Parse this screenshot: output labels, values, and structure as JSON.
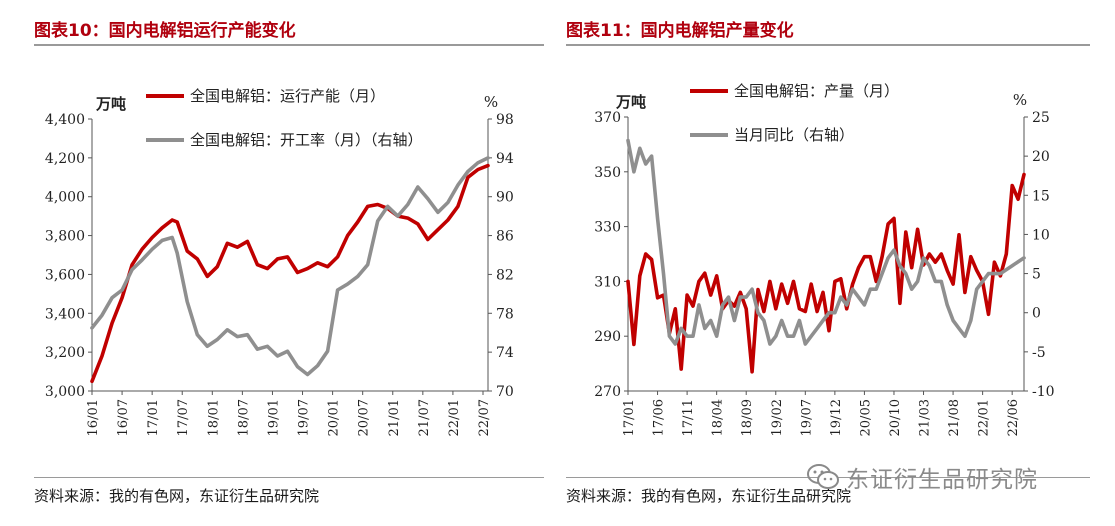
{
  "left": {
    "title": "图表10：国内电解铝运行产能变化",
    "source": "资料来源：我的有色网，东证衍生品研究院"
  },
  "right": {
    "title": "图表11：国内电解铝产量变化",
    "source": "资料来源：我的有色网，东证衍生品研究院"
  },
  "watermark": {
    "text": "东证衍生品研究院",
    "icon": "wechat-icon"
  },
  "colors": {
    "title": "#b0000e",
    "red_series": "#c00000",
    "gray_series": "#8f8f8f"
  },
  "chart_data": [
    {
      "type": "line",
      "ylabel_left": "万吨",
      "ylabel_right": "%",
      "ylim_left": [
        3000,
        4400
      ],
      "ylim_right": [
        70,
        98
      ],
      "yticks_left": [
        "3,000",
        "3,200",
        "3,400",
        "3,600",
        "3,800",
        "4,000",
        "4,200",
        "4,400"
      ],
      "yticks_right": [
        "70",
        "74",
        "78",
        "82",
        "86",
        "90",
        "94",
        "98"
      ],
      "x_ticks": [
        "16/01",
        "16/07",
        "17/01",
        "17/07",
        "18/01",
        "18/07",
        "19/01",
        "19/07",
        "20/01",
        "20/07",
        "21/01",
        "21/07",
        "22/01",
        "22/07"
      ],
      "x_range": [
        "2016-01",
        "2022-08"
      ],
      "grid": false,
      "legend_position": "top-left",
      "series": [
        {
          "name": "全国电解铝：运行产能（月）",
          "axis": "left",
          "color": "#c00000",
          "x": [
            "2016-01",
            "2016-03",
            "2016-05",
            "2016-07",
            "2016-09",
            "2016-11",
            "2017-01",
            "2017-03",
            "2017-05",
            "2017-06",
            "2017-08",
            "2017-10",
            "2017-12",
            "2018-02",
            "2018-04",
            "2018-06",
            "2018-08",
            "2018-10",
            "2018-12",
            "2019-02",
            "2019-04",
            "2019-06",
            "2019-08",
            "2019-10",
            "2019-12",
            "2020-02",
            "2020-04",
            "2020-06",
            "2020-08",
            "2020-10",
            "2020-12",
            "2021-02",
            "2021-04",
            "2021-06",
            "2021-08",
            "2021-10",
            "2021-12",
            "2022-02",
            "2022-04",
            "2022-06",
            "2022-08"
          ],
          "values": [
            3050,
            3180,
            3350,
            3480,
            3650,
            3730,
            3790,
            3840,
            3880,
            3870,
            3720,
            3680,
            3590,
            3640,
            3760,
            3740,
            3770,
            3650,
            3630,
            3680,
            3690,
            3610,
            3630,
            3660,
            3640,
            3690,
            3800,
            3870,
            3950,
            3960,
            3940,
            3900,
            3890,
            3860,
            3780,
            3830,
            3880,
            3950,
            4100,
            4140,
            4160
          ]
        },
        {
          "name": "全国电解铝：开工率（月）（右轴）",
          "axis": "right",
          "color": "#8f8f8f",
          "x": [
            "2016-01",
            "2016-03",
            "2016-05",
            "2016-07",
            "2016-09",
            "2016-11",
            "2017-01",
            "2017-03",
            "2017-05",
            "2017-06",
            "2017-08",
            "2017-10",
            "2017-12",
            "2018-02",
            "2018-04",
            "2018-06",
            "2018-08",
            "2018-10",
            "2018-12",
            "2019-02",
            "2019-04",
            "2019-06",
            "2019-08",
            "2019-10",
            "2019-12",
            "2020-02",
            "2020-04",
            "2020-06",
            "2020-08",
            "2020-10",
            "2020-12",
            "2021-02",
            "2021-04",
            "2021-06",
            "2021-08",
            "2021-10",
            "2021-12",
            "2022-02",
            "2022-04",
            "2022-06",
            "2022-08"
          ],
          "values": [
            76.5,
            77.8,
            79.6,
            80.4,
            82.5,
            83.5,
            84.6,
            85.5,
            85.8,
            84.2,
            79.2,
            75.8,
            74.6,
            75.3,
            76.3,
            75.6,
            75.8,
            74.3,
            74.6,
            73.6,
            74.1,
            72.5,
            71.7,
            72.6,
            74.1,
            80.4,
            81.0,
            81.8,
            83.0,
            87.5,
            89.0,
            88.0,
            89.2,
            91.0,
            89.8,
            88.4,
            89.4,
            91.2,
            92.6,
            93.5,
            94.0
          ]
        }
      ]
    },
    {
      "type": "line",
      "ylabel_left": "万吨",
      "ylabel_right": "%",
      "ylim_left": [
        270,
        370
      ],
      "ylim_right": [
        -10,
        25
      ],
      "yticks_left": [
        "270",
        "290",
        "310",
        "330",
        "350",
        "370"
      ],
      "yticks_right": [
        "-10",
        "-5",
        "0",
        "5",
        "10",
        "15",
        "20",
        "25"
      ],
      "x_ticks": [
        "17/01",
        "17/06",
        "17/11",
        "18/04",
        "18/09",
        "19/02",
        "19/07",
        "19/12",
        "20/05",
        "20/10",
        "21/03",
        "21/08",
        "22/01",
        "22/06"
      ],
      "x_range": [
        "2017-01",
        "2022-08"
      ],
      "grid": false,
      "legend_position": "top-left",
      "series": [
        {
          "name": "全国电解铝：产量（月）",
          "axis": "left",
          "color": "#c00000",
          "x": [
            "2017-01",
            "2017-02",
            "2017-03",
            "2017-04",
            "2017-05",
            "2017-06",
            "2017-07",
            "2017-08",
            "2017-09",
            "2017-10",
            "2017-11",
            "2017-12",
            "2018-01",
            "2018-02",
            "2018-03",
            "2018-04",
            "2018-05",
            "2018-06",
            "2018-07",
            "2018-08",
            "2018-09",
            "2018-10",
            "2018-11",
            "2018-12",
            "2019-01",
            "2019-02",
            "2019-03",
            "2019-04",
            "2019-05",
            "2019-06",
            "2019-07",
            "2019-08",
            "2019-09",
            "2019-10",
            "2019-11",
            "2019-12",
            "2020-01",
            "2020-02",
            "2020-03",
            "2020-04",
            "2020-05",
            "2020-06",
            "2020-07",
            "2020-08",
            "2020-09",
            "2020-10",
            "2020-11",
            "2020-12",
            "2021-01",
            "2021-02",
            "2021-03",
            "2021-04",
            "2021-05",
            "2021-06",
            "2021-07",
            "2021-08",
            "2021-09",
            "2021-10",
            "2021-11",
            "2021-12",
            "2022-01",
            "2022-02",
            "2022-03",
            "2022-04",
            "2022-05",
            "2022-06",
            "2022-07",
            "2022-08"
          ],
          "values": [
            310,
            287,
            312,
            320,
            318,
            304,
            305,
            291,
            300,
            278,
            305,
            301,
            310,
            313,
            305,
            312,
            300,
            303,
            301,
            306,
            300,
            277,
            307,
            299,
            310,
            300,
            309,
            302,
            310,
            300,
            299,
            309,
            299,
            306,
            292,
            310,
            311,
            300,
            309,
            315,
            319,
            319,
            310,
            319,
            331,
            333,
            302,
            328,
            315,
            329,
            316,
            320,
            317,
            320,
            314,
            309,
            327,
            306,
            319,
            314,
            310,
            298,
            317,
            312,
            320,
            345,
            340,
            349
          ]
        },
        {
          "name": "当月同比（右轴）",
          "axis": "right",
          "color": "#8f8f8f",
          "x": [
            "2017-01",
            "2017-02",
            "2017-03",
            "2017-04",
            "2017-05",
            "2017-06",
            "2017-07",
            "2017-08",
            "2017-09",
            "2017-10",
            "2017-11",
            "2017-12",
            "2018-01",
            "2018-02",
            "2018-03",
            "2018-04",
            "2018-05",
            "2018-06",
            "2018-07",
            "2018-08",
            "2018-09",
            "2018-10",
            "2018-11",
            "2018-12",
            "2019-01",
            "2019-02",
            "2019-03",
            "2019-04",
            "2019-05",
            "2019-06",
            "2019-07",
            "2019-08",
            "2019-09",
            "2019-10",
            "2019-11",
            "2019-12",
            "2020-01",
            "2020-02",
            "2020-03",
            "2020-04",
            "2020-05",
            "2020-06",
            "2020-07",
            "2020-08",
            "2020-09",
            "2020-10",
            "2020-11",
            "2020-12",
            "2021-01",
            "2021-02",
            "2021-03",
            "2021-04",
            "2021-05",
            "2021-06",
            "2021-07",
            "2021-08",
            "2021-09",
            "2021-10",
            "2021-11",
            "2021-12",
            "2022-01",
            "2022-02",
            "2022-04",
            "2022-06",
            "2022-08"
          ],
          "values": [
            22,
            18,
            21,
            19,
            20,
            12,
            5,
            -3,
            -4,
            -2,
            -3,
            -3,
            1,
            -2,
            -1,
            -3,
            1,
            2,
            -1,
            2,
            2,
            3,
            0,
            -1,
            -4,
            -3,
            -1,
            -3,
            -3,
            -1,
            -4,
            -3,
            -2,
            -1,
            0,
            0,
            2,
            1,
            3,
            2,
            1,
            3,
            3,
            5,
            7,
            8,
            6,
            5,
            3,
            4,
            7,
            6,
            4,
            4,
            1,
            -1,
            -2,
            -3,
            -1,
            3,
            4,
            5,
            5,
            6,
            7
          ]
        }
      ]
    }
  ]
}
